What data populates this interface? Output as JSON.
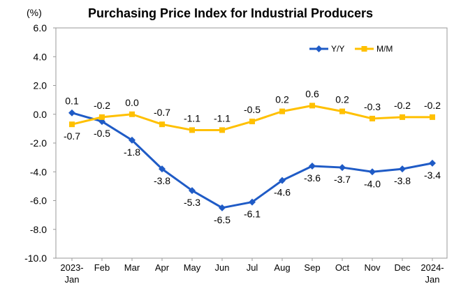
{
  "chart_data": {
    "type": "line",
    "title": "Purchasing Price Index for Industrial Producers",
    "unit": "(%)",
    "categories": [
      [
        "2023-",
        "Jan"
      ],
      [
        "Feb"
      ],
      [
        "Mar"
      ],
      [
        "Apr"
      ],
      [
        "May"
      ],
      [
        "Jun"
      ],
      [
        "Jul"
      ],
      [
        "Aug"
      ],
      [
        "Sep"
      ],
      [
        "Oct"
      ],
      [
        "Nov"
      ],
      [
        "Dec"
      ],
      [
        "2024-",
        "Jan"
      ]
    ],
    "ylim": [
      -10.0,
      6.0
    ],
    "yticks": [
      6.0,
      4.0,
      2.0,
      0.0,
      -2.0,
      -4.0,
      -6.0,
      -8.0,
      -10.0
    ],
    "ytick_labels": [
      "6.0",
      "4.0",
      "2.0",
      "0.0",
      "-2.0",
      "-4.0",
      "-6.0",
      "-8.0",
      "-10.0"
    ],
    "grid": false,
    "legend_position": "top-right",
    "series": [
      {
        "name": "Y/Y",
        "color": "#1F5BC6",
        "marker": "diamond",
        "values": [
          0.1,
          -0.5,
          -1.8,
          -3.8,
          -5.3,
          -6.5,
          -6.1,
          -4.6,
          -3.6,
          -3.7,
          -4.0,
          -3.8,
          -3.4
        ],
        "labels": [
          "0.1",
          "-0.5",
          "-1.8",
          "-3.8",
          "-5.3",
          "-6.5",
          "-6.1",
          "-4.6",
          "-3.6",
          "-3.7",
          "-4.0",
          "-3.8",
          "-3.4"
        ],
        "label_side": [
          "above",
          "below",
          "below",
          "below",
          "below",
          "below",
          "below",
          "below",
          "below",
          "below",
          "below",
          "below",
          "below"
        ]
      },
      {
        "name": "M/M",
        "color": "#FFC000",
        "marker": "square",
        "values": [
          -0.7,
          -0.2,
          0.0,
          -0.7,
          -1.1,
          -1.1,
          -0.5,
          0.2,
          0.6,
          0.2,
          -0.3,
          -0.2,
          -0.2
        ],
        "labels": [
          "-0.7",
          "-0.2",
          "0.0",
          "-0.7",
          "-1.1",
          "-1.1",
          "-0.5",
          "0.2",
          "0.6",
          "0.2",
          "-0.3",
          "-0.2",
          "-0.2"
        ],
        "label_side": [
          "below",
          "above",
          "above",
          "above",
          "above",
          "above",
          "above",
          "above",
          "above",
          "above",
          "above",
          "above",
          "above"
        ]
      }
    ]
  }
}
